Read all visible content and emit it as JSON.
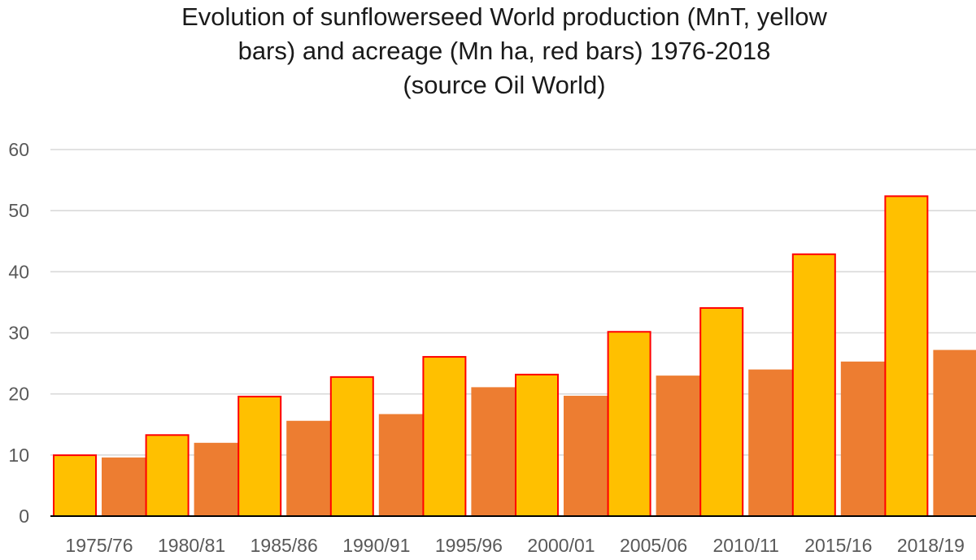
{
  "chart_data": {
    "type": "bar",
    "title": [
      "Evolution of sunflowerseed World production (MnT, yellow",
      "bars) and acreage (Mn ha, red bars) 1976-2018",
      "(source Oil World)"
    ],
    "categories": [
      "1975/76",
      "1980/81",
      "1985/86",
      "1990/91",
      "1995/96",
      "2000/01",
      "2005/06",
      "2010/11",
      "2015/16",
      "2018/19"
    ],
    "series": [
      {
        "color": "#FFC000",
        "stroke": "#FF0000",
        "values": [
          10.1,
          13.4,
          19.7,
          22.9,
          26.2,
          23.3,
          30.3,
          34.2,
          43.0,
          52.5
        ]
      },
      {
        "color": "#ED7D31",
        "stroke": "none",
        "values": [
          9.6,
          12.0,
          15.6,
          16.7,
          21.1,
          19.7,
          23.0,
          24.0,
          25.3,
          27.2
        ]
      }
    ],
    "ylim": [
      0,
      60
    ],
    "yticks": [
      "0",
      "10",
      "20",
      "30",
      "40",
      "50",
      "60"
    ],
    "grid": true,
    "xlabel": "",
    "ylabel": ""
  }
}
